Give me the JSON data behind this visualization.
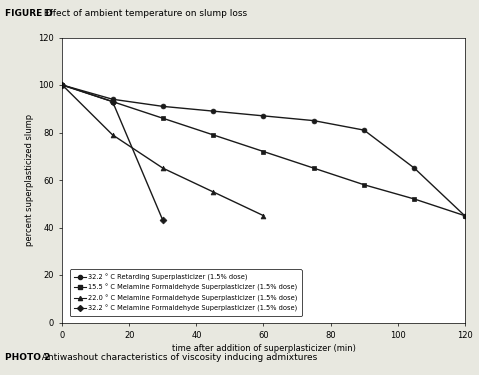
{
  "title_bold": "FIGURE D",
  "title_rest": " Effect of ambient temperature on slump loss",
  "xlabel": "time after addition of superplasticizer (min)",
  "ylabel": "percent superplasticized slump",
  "xlim": [
    0,
    120
  ],
  "ylim": [
    0,
    120
  ],
  "xticks": [
    0,
    20,
    40,
    60,
    80,
    100,
    120
  ],
  "yticks": [
    0,
    20,
    40,
    60,
    80,
    100,
    120
  ],
  "lines": [
    {
      "label": "32.2 ° C Retarding Superplasticizer (1.5% dose)",
      "x": [
        0,
        15,
        30,
        45,
        60,
        75,
        90,
        105,
        120
      ],
      "y": [
        100,
        94,
        91,
        89,
        87,
        85,
        81,
        65,
        45
      ],
      "marker": "o",
      "markersize": 3.5
    },
    {
      "label": "15.5 ° C Melamine Formaldehyde Superplasticizer (1.5% dose)",
      "x": [
        0,
        15,
        30,
        45,
        60,
        75,
        90,
        105,
        120
      ],
      "y": [
        100,
        93,
        86,
        79,
        72,
        65,
        58,
        52,
        45
      ],
      "marker": "s",
      "markersize": 3.5
    },
    {
      "label": "22.0 ° C Melamine Formaldehyde Superplasticizer (1.5% dose)",
      "x": [
        0,
        15,
        30,
        45,
        60
      ],
      "y": [
        100,
        79,
        65,
        55,
        45
      ],
      "marker": "^",
      "markersize": 3.5
    },
    {
      "label": "32.2 ° C Melamine Formaldehyde Superplasticizer (1.5% dose)",
      "x": [
        0,
        15,
        30
      ],
      "y": [
        100,
        93,
        43
      ],
      "marker": "D",
      "markersize": 3.5
    }
  ],
  "legend_labels": [
    "32.2 ° C Retarding Superplasticizer (1.5% dose)",
    "15.5 ° C Melamine Formaldehyde Superplasticizer (1.5% dose)",
    "22.0 ° C Melamine Formaldehyde Superplasticizer (1.5% dose)",
    "32.2 ° C Melamine Formaldehyde Superplasticizer (1.5% dose)"
  ],
  "legend_markers": [
    "o",
    "s",
    "^",
    "D"
  ],
  "footer_bold": "PHOTO 2",
  "footer_rest": "  Antiwashout characteristics of viscosity inducing admixtures",
  "line_color": "#1a1a1a",
  "linewidth": 1.0,
  "background_color": "#e8e8e0",
  "plot_bg_color": "#ffffff"
}
